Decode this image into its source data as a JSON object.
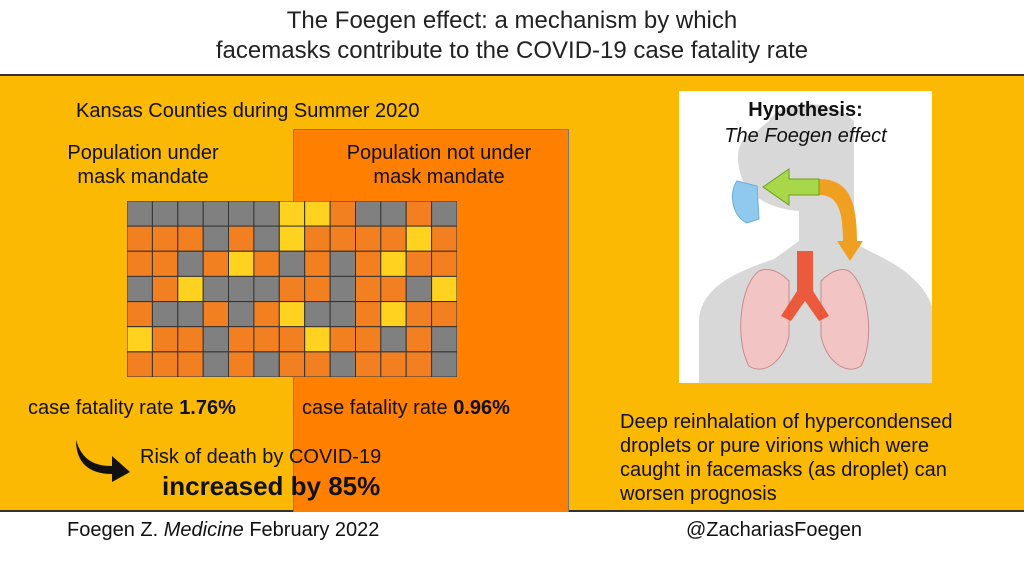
{
  "title": {
    "line1": "The Foegen effect: a mechanism by which",
    "line2": "facemasks contribute to the COVID-19 case fatality rate"
  },
  "left": {
    "heading": "Kansas Counties during Summer 2020",
    "mandate_label_line1": "Population under",
    "mandate_label_line2": "mask mandate",
    "cfr_prefix": "case fatality rate ",
    "cfr_value": "1.76%"
  },
  "middle": {
    "label_line1": "Population not under",
    "label_line2": "mask mandate",
    "cfr_prefix": "case fatality rate ",
    "cfr_value": "0.96%"
  },
  "risk": {
    "line1": "Risk of death by COVID-19",
    "line2": "increased by 85%"
  },
  "hypothesis": {
    "title": "Hypothesis:",
    "subtitle": "The Foegen effect",
    "body_line1": "Deep reinhalation of hypercondensed",
    "body_line2": "droplets or pure virions which were",
    "body_line3": "caught in facemasks (as droplet) can",
    "body_line4": "worsen prognosis"
  },
  "footer": {
    "citation_author": "Foegen Z. ",
    "citation_journal": "Medicine",
    "citation_date": " February 2022",
    "handle": "@ZachariasFoegen"
  },
  "colors": {
    "panel_bg": "#fbb904",
    "no_mandate_bg": "#ff7f00",
    "county_gray": "#808080",
    "county_orange": "#f28020",
    "county_yellow": "#ffd21f"
  },
  "icons": {
    "risk_arrow": "curved-down-right-arrow-icon",
    "illustration": "head-mask-lungs-illustration"
  }
}
